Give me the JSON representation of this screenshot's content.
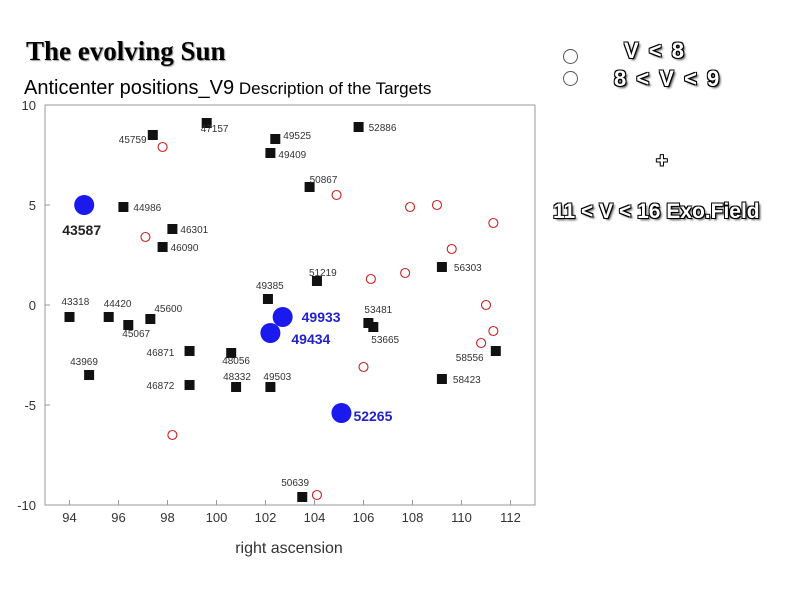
{
  "header": {
    "title": "The evolving Sun",
    "subtitle_part1": "Anticenter positions_V9",
    "subtitle_part2": " Description of the Targets"
  },
  "legend": {
    "row1": "V < 8",
    "row2": "8 < V < 9",
    "plus": "+",
    "exo": "11 < V < 16  Exo.Field"
  },
  "colors": {
    "square": "#111111",
    "open_circle": "#cc2222",
    "big_circle": "#1a1aee",
    "frame": "#999999"
  },
  "chart_data": {
    "type": "scatter",
    "title": "",
    "xlabel": "right ascension",
    "ylabel": "",
    "xlim": [
      93,
      113
    ],
    "ylim": [
      -10,
      10
    ],
    "xticks": [
      94,
      96,
      98,
      100,
      102,
      104,
      106,
      108,
      110,
      112
    ],
    "yticks": [
      -10,
      -5,
      0,
      5,
      10
    ],
    "series": [
      {
        "name": "V < 8",
        "marker": "filled-circle-large",
        "points": [
          {
            "x": 94.6,
            "y": 5.0,
            "label": "43587"
          },
          {
            "x": 102.7,
            "y": -0.6,
            "label": "49933"
          },
          {
            "x": 102.2,
            "y": -1.4,
            "label": "49434"
          },
          {
            "x": 105.1,
            "y": -5.4,
            "label": "52265"
          }
        ]
      },
      {
        "name": "8 < V < 9",
        "marker": "filled-square",
        "points": [
          {
            "x": 97.4,
            "y": 8.5,
            "label": "45759"
          },
          {
            "x": 99.6,
            "y": 9.1,
            "label": "47157"
          },
          {
            "x": 102.4,
            "y": 8.3,
            "label": "49525"
          },
          {
            "x": 102.2,
            "y": 7.6,
            "label": "49409"
          },
          {
            "x": 105.8,
            "y": 8.9,
            "label": "52886"
          },
          {
            "x": 103.8,
            "y": 5.9,
            "label": "50867"
          },
          {
            "x": 96.2,
            "y": 4.9,
            "label": "44986"
          },
          {
            "x": 98.2,
            "y": 3.8,
            "label": "46301"
          },
          {
            "x": 97.8,
            "y": 2.9,
            "label": "46090"
          },
          {
            "x": 104.1,
            "y": 1.2,
            "label": "51219"
          },
          {
            "x": 109.2,
            "y": 1.9,
            "label": "56303"
          },
          {
            "x": 94.0,
            "y": -0.6,
            "label": "43318"
          },
          {
            "x": 95.6,
            "y": -0.6,
            "label": "44420"
          },
          {
            "x": 97.3,
            "y": -0.7,
            "label": "45600"
          },
          {
            "x": 96.4,
            "y": -1.0,
            "label": "45067"
          },
          {
            "x": 102.1,
            "y": 0.3,
            "label": "49385"
          },
          {
            "x": 106.2,
            "y": -0.9,
            "label": "53481"
          },
          {
            "x": 106.4,
            "y": -1.1,
            "label": "53665"
          },
          {
            "x": 98.9,
            "y": -2.3,
            "label": "46871"
          },
          {
            "x": 100.6,
            "y": -2.4,
            "label": "48056"
          },
          {
            "x": 111.4,
            "y": -2.3,
            "label": "58556"
          },
          {
            "x": 94.8,
            "y": -3.5,
            "label": "43969"
          },
          {
            "x": 98.9,
            "y": -4.0,
            "label": "46872"
          },
          {
            "x": 100.8,
            "y": -4.1,
            "label": "48332"
          },
          {
            "x": 102.2,
            "y": -4.1,
            "label": "49503"
          },
          {
            "x": 109.2,
            "y": -3.7,
            "label": "58423"
          },
          {
            "x": 103.5,
            "y": -9.6,
            "label": "50639"
          }
        ]
      },
      {
        "name": "11 < V < 16",
        "marker": "open-circle",
        "points": [
          {
            "x": 97.8,
            "y": 7.9
          },
          {
            "x": 97.1,
            "y": 3.4
          },
          {
            "x": 104.9,
            "y": 5.5
          },
          {
            "x": 107.9,
            "y": 4.9
          },
          {
            "x": 109.0,
            "y": 5.0
          },
          {
            "x": 111.3,
            "y": 4.1
          },
          {
            "x": 109.6,
            "y": 2.8
          },
          {
            "x": 106.3,
            "y": 1.3
          },
          {
            "x": 107.7,
            "y": 1.6
          },
          {
            "x": 111.0,
            "y": 0.0
          },
          {
            "x": 111.3,
            "y": -1.3
          },
          {
            "x": 110.8,
            "y": -1.9
          },
          {
            "x": 106.0,
            "y": -3.1
          },
          {
            "x": 98.2,
            "y": -6.5
          },
          {
            "x": 104.1,
            "y": -9.5
          }
        ]
      }
    ]
  }
}
